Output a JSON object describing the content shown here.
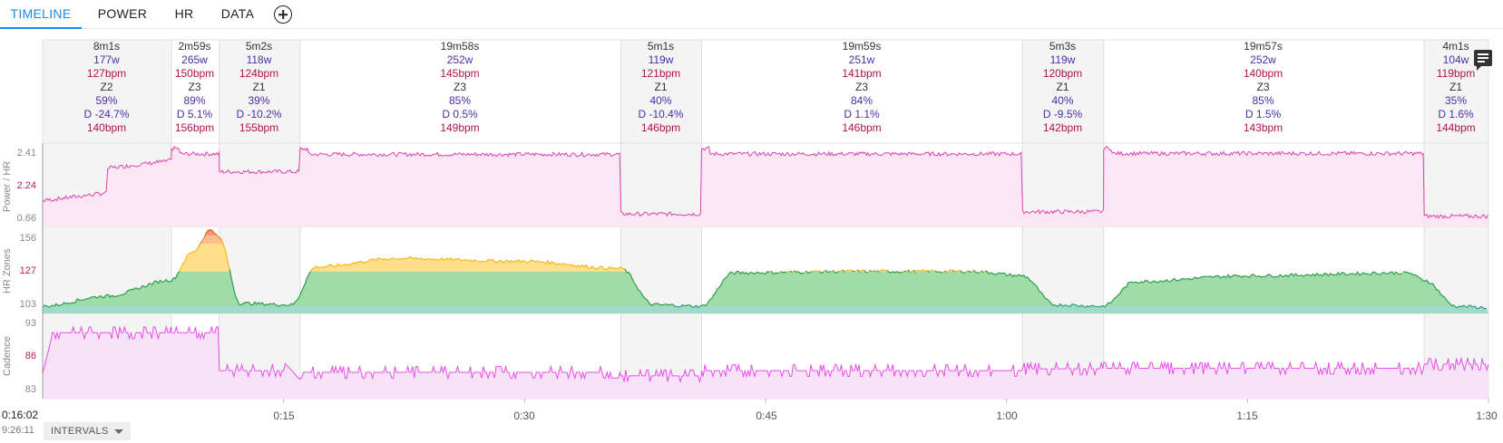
{
  "tabs": [
    {
      "label": "TIMELINE",
      "active": true
    },
    {
      "label": "POWER",
      "active": false
    },
    {
      "label": "HR",
      "active": false
    },
    {
      "label": "DATA",
      "active": false
    }
  ],
  "add_tab_icon": "plus-circle-icon",
  "comment_icon": "comment-icon",
  "intervals": [
    {
      "duration": "8m1s",
      "watts": "177w",
      "bpm": "127bpm",
      "zone": "Z2",
      "intensity": "59%",
      "drift": "D -24.7%",
      "max_hr": "140bpm"
    },
    {
      "duration": "2m59s",
      "watts": "265w",
      "bpm": "150bpm",
      "zone": "Z3",
      "intensity": "89%",
      "drift": "D 5.1%",
      "max_hr": "156bpm"
    },
    {
      "duration": "5m2s",
      "watts": "118w",
      "bpm": "124bpm",
      "zone": "Z1",
      "intensity": "39%",
      "drift": "D -10.2%",
      "max_hr": "155bpm"
    },
    {
      "duration": "19m58s",
      "watts": "252w",
      "bpm": "145bpm",
      "zone": "Z3",
      "intensity": "85%",
      "drift": "D 0.5%",
      "max_hr": "149bpm"
    },
    {
      "duration": "5m1s",
      "watts": "119w",
      "bpm": "121bpm",
      "zone": "Z1",
      "intensity": "40%",
      "drift": "D -10.4%",
      "max_hr": "146bpm"
    },
    {
      "duration": "19m59s",
      "watts": "251w",
      "bpm": "141bpm",
      "zone": "Z3",
      "intensity": "84%",
      "drift": "D 1.1%",
      "max_hr": "146bpm"
    },
    {
      "duration": "5m3s",
      "watts": "119w",
      "bpm": "120bpm",
      "zone": "Z1",
      "intensity": "40%",
      "drift": "D -9.5%",
      "max_hr": "142bpm"
    },
    {
      "duration": "19m57s",
      "watts": "252w",
      "bpm": "140bpm",
      "zone": "Z3",
      "intensity": "85%",
      "drift": "D 1.5%",
      "max_hr": "143bpm"
    },
    {
      "duration": "4m1s",
      "watts": "104w",
      "bpm": "119bpm",
      "zone": "Z1",
      "intensity": "35%",
      "drift": "D 1.6%",
      "max_hr": "144bpm"
    }
  ],
  "panels": {
    "power_hr": {
      "title": "Power / HR",
      "y_top": "2.41",
      "y_mid": "2.24",
      "y_bottom": "0.66"
    },
    "hr_zones": {
      "title": "HR Zones",
      "y_top": "156",
      "y_mid": "127",
      "y_bottom": "103"
    },
    "cadence": {
      "title": "Cadence",
      "y_top": "93",
      "y_mid": "86",
      "y_bottom": "83"
    }
  },
  "x_axis": {
    "ticks": [
      "0:15",
      "0:30",
      "0:45",
      "1:00",
      "1:15",
      "1:30"
    ],
    "start_time": "0:16:02",
    "clock_time": "9:26:11"
  },
  "intervals_button": {
    "label": "INTERVALS"
  },
  "colors": {
    "accent": "#1e88e5",
    "power_hr_line": "#e040b0",
    "cadence_line": "#e64dea",
    "hr_z1": "#9fdacb",
    "hr_z2": "#9fdcaa",
    "hr_z3": "#ffe08a",
    "hr_z4": "#ffbf8a",
    "hr_z5": "#ff9470",
    "watts_text": "#4a2ea8",
    "bpm_text": "#b0124e"
  },
  "chart_data": {
    "type": "line",
    "x_unit": "elapsed time (h:mm)",
    "x_ticks": [
      "0:15",
      "0:30",
      "0:45",
      "1:00",
      "1:15",
      "1:30"
    ],
    "x_range_minutes": [
      0,
      90
    ],
    "interval_minutes": [
      [
        0,
        8.02
      ],
      [
        8.02,
        11.0
      ],
      [
        11.0,
        16.03
      ],
      [
        16.03,
        36.0
      ],
      [
        36.0,
        41.02
      ],
      [
        41.02,
        61.0
      ],
      [
        61.0,
        66.05
      ],
      [
        66.05,
        86.0
      ],
      [
        86.0,
        90.0
      ]
    ],
    "series": [
      {
        "name": "Power / HR",
        "ylim": [
          0.66,
          2.41
        ],
        "segment_levels": [
          1.4,
          2.25,
          1.85,
          2.24,
          0.9,
          2.25,
          0.95,
          2.26,
          0.85
        ]
      },
      {
        "name": "HR Zones",
        "ylim": [
          98,
          158
        ],
        "hr_points": [
          [
            0,
            103
          ],
          [
            4,
            110
          ],
          [
            8,
            121
          ],
          [
            9.3,
            140
          ],
          [
            10.5,
            156
          ],
          [
            11,
            150
          ],
          [
            12.3,
            105
          ],
          [
            15.5,
            104
          ],
          [
            17,
            130
          ],
          [
            22,
            136
          ],
          [
            30,
            134
          ],
          [
            36,
            129
          ],
          [
            38,
            104
          ],
          [
            41,
            103
          ],
          [
            43,
            126
          ],
          [
            50,
            127
          ],
          [
            58,
            127
          ],
          [
            61,
            124
          ],
          [
            63,
            104
          ],
          [
            66,
            103
          ],
          [
            68,
            120
          ],
          [
            75,
            124
          ],
          [
            85,
            126
          ],
          [
            86,
            121
          ],
          [
            88,
            103
          ],
          [
            90,
            102
          ]
        ]
      },
      {
        "name": "Cadence",
        "ylim": [
          80,
          94
        ],
        "segment_levels": [
          91,
          91,
          84.5,
          84.2,
          83.6,
          84.5,
          84.8,
          84.9,
          85.6
        ]
      }
    ]
  }
}
